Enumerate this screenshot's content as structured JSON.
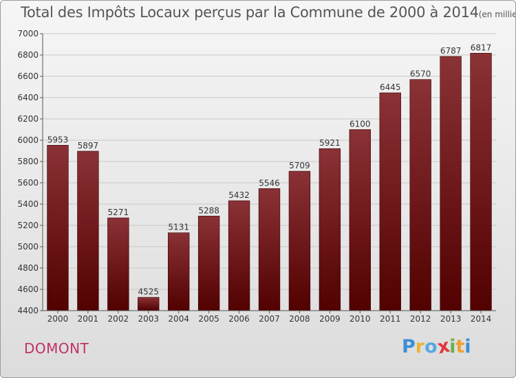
{
  "chart_data": {
    "type": "bar",
    "title": "Total des Impôts Locaux perçus par la Commune de 2000 à 2014",
    "unit_label": "(en milliers d'€)",
    "categories": [
      "2000",
      "2001",
      "2002",
      "2003",
      "2004",
      "2005",
      "2006",
      "2007",
      "2008",
      "2009",
      "2010",
      "2011",
      "2012",
      "2013",
      "2014"
    ],
    "values": [
      5953,
      5897,
      5271,
      4525,
      5131,
      5288,
      5432,
      5546,
      5709,
      5921,
      6100,
      6445,
      6570,
      6787,
      6817
    ],
    "yticks": [
      4400,
      4600,
      4800,
      5000,
      5200,
      5400,
      5600,
      5800,
      6000,
      6200,
      6400,
      6600,
      6800,
      7000
    ],
    "ylim": [
      4400,
      7000
    ],
    "xlabel": "",
    "ylabel": "",
    "grid": true,
    "bar_color_top": "#8a3236",
    "bar_color_bottom": "#520000"
  },
  "commune": "DOMONT",
  "brand": {
    "letters": [
      "P",
      "r",
      "o",
      "x",
      "i",
      "t",
      "i"
    ],
    "colors": [
      "#3a8fd6",
      "#e8b43a",
      "#5aa8e0",
      "#e3363c",
      "#6ab04c",
      "#f0a030",
      "#3a8fd6"
    ]
  }
}
